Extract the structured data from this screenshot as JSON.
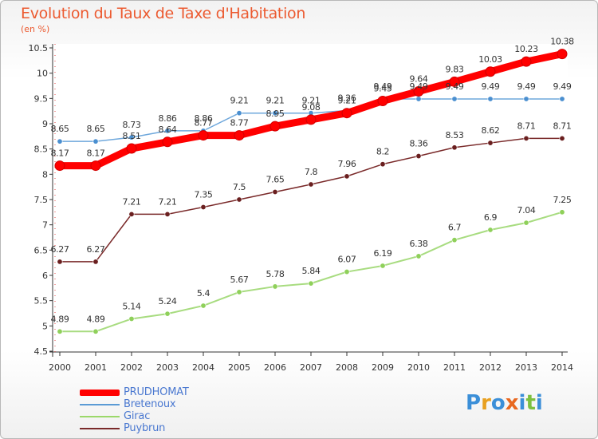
{
  "header": {
    "title": "Evolution du Taux de Taxe d'Habitation",
    "subtitle": "(en %)"
  },
  "logo": {
    "text": "Proxiti"
  },
  "chart_data": {
    "type": "line",
    "title": "Evolution du Taux de Taxe d'Habitation",
    "subtitle": "(en %)",
    "xlabel": "",
    "ylabel": "",
    "x": [
      "2000",
      "2001",
      "2002",
      "2003",
      "2004",
      "2005",
      "2006",
      "2007",
      "2008",
      "2009",
      "2010",
      "2011",
      "2012",
      "2013",
      "2014"
    ],
    "ylim": [
      4.5,
      10.5
    ],
    "yticks": [
      "4.5",
      "5",
      "5.5",
      "6",
      "6.5",
      "7",
      "7.5",
      "8",
      "8.5",
      "9",
      "9.5",
      "10",
      "10.5"
    ],
    "grid": false,
    "legend_position": "bottom-left",
    "series": [
      {
        "name": "PRUDHOMAT",
        "color": "#ff0000",
        "values": [
          8.17,
          8.17,
          8.51,
          8.64,
          8.77,
          8.77,
          8.95,
          9.08,
          9.21,
          9.45,
          9.64,
          9.83,
          10.03,
          10.23,
          10.38
        ],
        "labels": [
          "8.17",
          "8.17",
          "8.51",
          "8.64",
          "8.77",
          "8.77",
          "8.95",
          "9.08",
          "9.21",
          "9.45",
          "9.64",
          "9.83",
          "10.03",
          "10.23",
          "10.38"
        ]
      },
      {
        "name": "Bretenoux",
        "color": "#5b9bd5",
        "values": [
          8.65,
          8.65,
          8.73,
          8.86,
          8.86,
          9.21,
          9.21,
          9.21,
          9.26,
          9.49,
          9.49,
          9.49,
          9.49,
          9.49,
          9.49
        ],
        "labels": [
          "8.65",
          "8.65",
          "8.73",
          "8.86",
          "8.86",
          "9.21",
          "9.21",
          "9.21",
          "9.26",
          "9.49",
          "9.49",
          "9.49",
          "9.49",
          "9.49",
          "9.49"
        ]
      },
      {
        "name": "Girac",
        "color": "#9bd86a",
        "values": [
          4.89,
          4.89,
          5.14,
          5.24,
          5.4,
          5.67,
          5.78,
          5.84,
          6.07,
          6.19,
          6.38,
          6.7,
          6.9,
          7.04,
          7.25
        ],
        "labels": [
          "4.89",
          "4.89",
          "5.14",
          "5.24",
          "5.4",
          "5.67",
          "5.78",
          "5.84",
          "6.07",
          "6.19",
          "6.38",
          "6.7",
          "6.9",
          "7.04",
          "7.25"
        ]
      },
      {
        "name": "Puybrun",
        "color": "#7a2a2a",
        "values": [
          6.27,
          6.27,
          7.21,
          7.21,
          7.35,
          7.5,
          7.65,
          7.8,
          7.96,
          8.2,
          8.36,
          8.53,
          8.62,
          8.71,
          8.71
        ],
        "labels": [
          "6.27",
          "6.27",
          "7.21",
          "7.21",
          "7.35",
          "7.5",
          "7.65",
          "7.8",
          "7.96",
          "8.2",
          "8.36",
          "8.53",
          "8.62",
          "8.71",
          "8.71"
        ]
      }
    ]
  }
}
